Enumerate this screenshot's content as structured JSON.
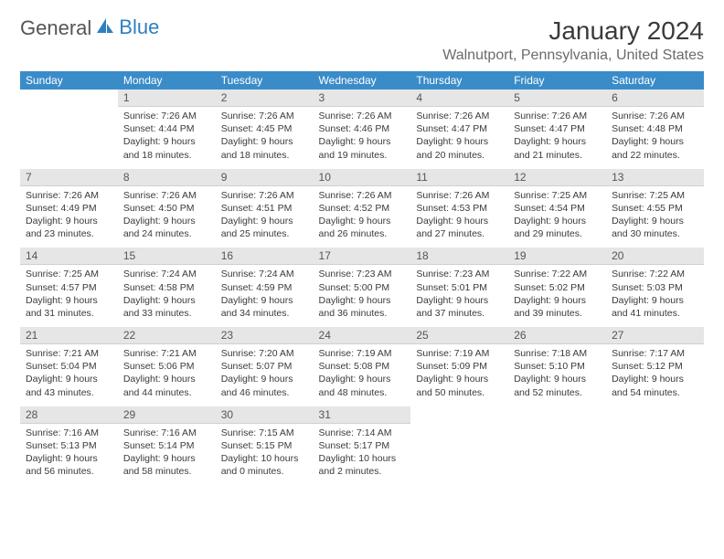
{
  "logo": {
    "word1": "General",
    "word2": "Blue"
  },
  "header": {
    "month_title": "January 2024",
    "location": "Walnutport, Pennsylvania, United States"
  },
  "colors": {
    "header_bg": "#3a8cc9",
    "header_fg": "#ffffff",
    "daynum_bg": "#e6e6e6",
    "text": "#3a3a3a",
    "logo_blue": "#2f7fbf"
  },
  "calendar": {
    "type": "table",
    "day_labels": [
      "Sunday",
      "Monday",
      "Tuesday",
      "Wednesday",
      "Thursday",
      "Friday",
      "Saturday"
    ],
    "start_col": 1,
    "days": [
      {
        "n": "1",
        "sr": "Sunrise: 7:26 AM",
        "ss": "Sunset: 4:44 PM",
        "dl": "Daylight: 9 hours and 18 minutes."
      },
      {
        "n": "2",
        "sr": "Sunrise: 7:26 AM",
        "ss": "Sunset: 4:45 PM",
        "dl": "Daylight: 9 hours and 18 minutes."
      },
      {
        "n": "3",
        "sr": "Sunrise: 7:26 AM",
        "ss": "Sunset: 4:46 PM",
        "dl": "Daylight: 9 hours and 19 minutes."
      },
      {
        "n": "4",
        "sr": "Sunrise: 7:26 AM",
        "ss": "Sunset: 4:47 PM",
        "dl": "Daylight: 9 hours and 20 minutes."
      },
      {
        "n": "5",
        "sr": "Sunrise: 7:26 AM",
        "ss": "Sunset: 4:47 PM",
        "dl": "Daylight: 9 hours and 21 minutes."
      },
      {
        "n": "6",
        "sr": "Sunrise: 7:26 AM",
        "ss": "Sunset: 4:48 PM",
        "dl": "Daylight: 9 hours and 22 minutes."
      },
      {
        "n": "7",
        "sr": "Sunrise: 7:26 AM",
        "ss": "Sunset: 4:49 PM",
        "dl": "Daylight: 9 hours and 23 minutes."
      },
      {
        "n": "8",
        "sr": "Sunrise: 7:26 AM",
        "ss": "Sunset: 4:50 PM",
        "dl": "Daylight: 9 hours and 24 minutes."
      },
      {
        "n": "9",
        "sr": "Sunrise: 7:26 AM",
        "ss": "Sunset: 4:51 PM",
        "dl": "Daylight: 9 hours and 25 minutes."
      },
      {
        "n": "10",
        "sr": "Sunrise: 7:26 AM",
        "ss": "Sunset: 4:52 PM",
        "dl": "Daylight: 9 hours and 26 minutes."
      },
      {
        "n": "11",
        "sr": "Sunrise: 7:26 AM",
        "ss": "Sunset: 4:53 PM",
        "dl": "Daylight: 9 hours and 27 minutes."
      },
      {
        "n": "12",
        "sr": "Sunrise: 7:25 AM",
        "ss": "Sunset: 4:54 PM",
        "dl": "Daylight: 9 hours and 29 minutes."
      },
      {
        "n": "13",
        "sr": "Sunrise: 7:25 AM",
        "ss": "Sunset: 4:55 PM",
        "dl": "Daylight: 9 hours and 30 minutes."
      },
      {
        "n": "14",
        "sr": "Sunrise: 7:25 AM",
        "ss": "Sunset: 4:57 PM",
        "dl": "Daylight: 9 hours and 31 minutes."
      },
      {
        "n": "15",
        "sr": "Sunrise: 7:24 AM",
        "ss": "Sunset: 4:58 PM",
        "dl": "Daylight: 9 hours and 33 minutes."
      },
      {
        "n": "16",
        "sr": "Sunrise: 7:24 AM",
        "ss": "Sunset: 4:59 PM",
        "dl": "Daylight: 9 hours and 34 minutes."
      },
      {
        "n": "17",
        "sr": "Sunrise: 7:23 AM",
        "ss": "Sunset: 5:00 PM",
        "dl": "Daylight: 9 hours and 36 minutes."
      },
      {
        "n": "18",
        "sr": "Sunrise: 7:23 AM",
        "ss": "Sunset: 5:01 PM",
        "dl": "Daylight: 9 hours and 37 minutes."
      },
      {
        "n": "19",
        "sr": "Sunrise: 7:22 AM",
        "ss": "Sunset: 5:02 PM",
        "dl": "Daylight: 9 hours and 39 minutes."
      },
      {
        "n": "20",
        "sr": "Sunrise: 7:22 AM",
        "ss": "Sunset: 5:03 PM",
        "dl": "Daylight: 9 hours and 41 minutes."
      },
      {
        "n": "21",
        "sr": "Sunrise: 7:21 AM",
        "ss": "Sunset: 5:04 PM",
        "dl": "Daylight: 9 hours and 43 minutes."
      },
      {
        "n": "22",
        "sr": "Sunrise: 7:21 AM",
        "ss": "Sunset: 5:06 PM",
        "dl": "Daylight: 9 hours and 44 minutes."
      },
      {
        "n": "23",
        "sr": "Sunrise: 7:20 AM",
        "ss": "Sunset: 5:07 PM",
        "dl": "Daylight: 9 hours and 46 minutes."
      },
      {
        "n": "24",
        "sr": "Sunrise: 7:19 AM",
        "ss": "Sunset: 5:08 PM",
        "dl": "Daylight: 9 hours and 48 minutes."
      },
      {
        "n": "25",
        "sr": "Sunrise: 7:19 AM",
        "ss": "Sunset: 5:09 PM",
        "dl": "Daylight: 9 hours and 50 minutes."
      },
      {
        "n": "26",
        "sr": "Sunrise: 7:18 AM",
        "ss": "Sunset: 5:10 PM",
        "dl": "Daylight: 9 hours and 52 minutes."
      },
      {
        "n": "27",
        "sr": "Sunrise: 7:17 AM",
        "ss": "Sunset: 5:12 PM",
        "dl": "Daylight: 9 hours and 54 minutes."
      },
      {
        "n": "28",
        "sr": "Sunrise: 7:16 AM",
        "ss": "Sunset: 5:13 PM",
        "dl": "Daylight: 9 hours and 56 minutes."
      },
      {
        "n": "29",
        "sr": "Sunrise: 7:16 AM",
        "ss": "Sunset: 5:14 PM",
        "dl": "Daylight: 9 hours and 58 minutes."
      },
      {
        "n": "30",
        "sr": "Sunrise: 7:15 AM",
        "ss": "Sunset: 5:15 PM",
        "dl": "Daylight: 10 hours and 0 minutes."
      },
      {
        "n": "31",
        "sr": "Sunrise: 7:14 AM",
        "ss": "Sunset: 5:17 PM",
        "dl": "Daylight: 10 hours and 2 minutes."
      }
    ]
  }
}
